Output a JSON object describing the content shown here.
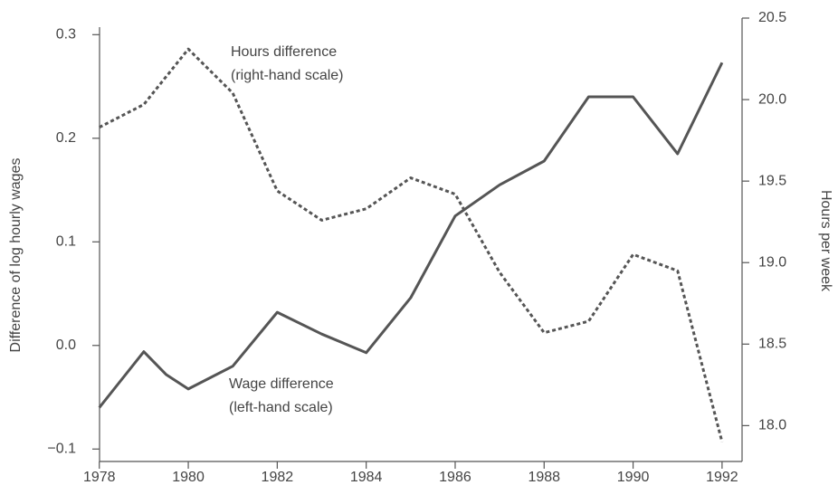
{
  "chart_data": {
    "type": "line",
    "ylabel": "Difference of log hourly wages",
    "y2label": "Hours per week",
    "annotations": [
      {
        "lines": [
          "Hours difference",
          "(right-hand scale)"
        ]
      },
      {
        "lines": [
          "Wage difference",
          "(left-hand scale)"
        ]
      }
    ],
    "xlim": [
      1977.7,
      1992.45
    ],
    "xticks": [
      1978,
      1980,
      1982,
      1984,
      1986,
      1988,
      1990,
      1992
    ],
    "ylim": [
      -0.112,
      0.316
    ],
    "yticks": [
      {
        "value": -0.1,
        "label": "−0.1"
      },
      {
        "value": 0,
        "label": "0.0"
      },
      0.1,
      0.2,
      0.3
    ],
    "y2lim": [
      17.78,
      20.5
    ],
    "y2ticks": [
      {
        "value": 18,
        "label": "18.0"
      },
      18.5,
      {
        "value": 19,
        "label": "19.0"
      },
      19.5,
      {
        "value": 20,
        "label": "20.0"
      },
      20.5
    ],
    "series": [
      {
        "name": "Wage difference",
        "color": "#555555",
        "dash": "solid",
        "x": [
          1978,
          1979,
          1979.5,
          1980,
          1981,
          1982,
          1983,
          1984,
          1985,
          1986,
          1987,
          1988,
          1989,
          1990,
          1991,
          1992
        ],
        "values": [
          -0.06,
          -0.006,
          -0.028,
          -0.042,
          -0.02,
          0.032,
          0.011,
          -0.007,
          0.046,
          0.125,
          0.155,
          0.178,
          0.24,
          0.24,
          0.185,
          0.273
        ]
      },
      {
        "name": "Hours difference",
        "color": "#555555",
        "dash": "dotted",
        "axis": "y2",
        "x": [
          1978,
          1979,
          1980,
          1981,
          1982,
          1983,
          1984,
          1985,
          1986,
          1987,
          1988,
          1989,
          1990,
          1991,
          1992
        ],
        "values": [
          19.83,
          19.97,
          20.31,
          20.04,
          19.44,
          19.26,
          19.33,
          19.52,
          19.42,
          18.94,
          18.57,
          18.64,
          19.05,
          18.95,
          17.9
        ]
      }
    ]
  }
}
